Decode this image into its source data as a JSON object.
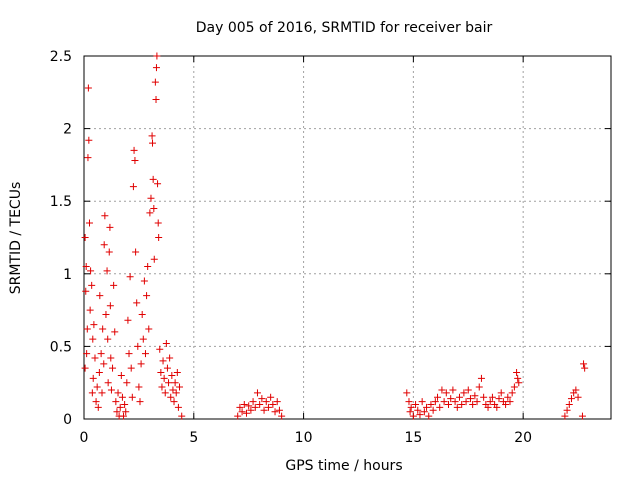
{
  "chart_data": {
    "type": "scatter",
    "title": "Day 005 of 2016, SRMTID for receiver bair",
    "xlabel": "GPS time / hours",
    "ylabel": "SRMTID / TECUs",
    "xlim": [
      0,
      24
    ],
    "ylim": [
      0,
      2.5
    ],
    "xticks": [
      "0",
      "5",
      "10",
      "15",
      "20"
    ],
    "yticks": [
      "0",
      "0.5",
      "1",
      "1.5",
      "2",
      "2.5"
    ],
    "grid": true,
    "legend": "none",
    "marker": "plus",
    "color": "#e00000",
    "series": [
      {
        "points": [
          [
            0.05,
            1.25
          ],
          [
            0.1,
            1.05
          ],
          [
            0.08,
            0.88
          ],
          [
            0.15,
            0.62
          ],
          [
            0.2,
            2.28
          ],
          [
            0.22,
            1.92
          ],
          [
            0.18,
            1.8
          ],
          [
            0.25,
            1.35
          ],
          [
            0.3,
            1.02
          ],
          [
            0.12,
            0.45
          ],
          [
            0.05,
            0.35
          ],
          [
            0.28,
            0.75
          ],
          [
            0.35,
            0.92
          ],
          [
            0.4,
            0.55
          ],
          [
            0.45,
            0.65
          ],
          [
            0.5,
            0.42
          ],
          [
            0.38,
            0.18
          ],
          [
            0.42,
            0.28
          ],
          [
            0.55,
            0.12
          ],
          [
            0.6,
            0.22
          ],
          [
            0.65,
            0.08
          ],
          [
            0.7,
            0.32
          ],
          [
            0.72,
            0.85
          ],
          [
            0.78,
            0.45
          ],
          [
            0.82,
            0.18
          ],
          [
            0.85,
            0.62
          ],
          [
            0.9,
            0.38
          ],
          [
            0.92,
            1.2
          ],
          [
            0.95,
            1.4
          ],
          [
            1.0,
            0.72
          ],
          [
            1.05,
            1.02
          ],
          [
            1.08,
            0.55
          ],
          [
            1.1,
            0.25
          ],
          [
            1.15,
            1.15
          ],
          [
            1.18,
            1.32
          ],
          [
            1.2,
            0.78
          ],
          [
            1.22,
            0.42
          ],
          [
            1.25,
            0.2
          ],
          [
            1.3,
            0.35
          ],
          [
            1.35,
            0.92
          ],
          [
            1.4,
            0.6
          ],
          [
            1.45,
            0.12
          ],
          [
            1.5,
            0.05
          ],
          [
            1.55,
            0.18
          ],
          [
            1.6,
            0.02
          ],
          [
            1.65,
            0.08
          ],
          [
            1.7,
            0.3
          ],
          [
            1.75,
            0.15
          ],
          [
            1.8,
            0.02
          ],
          [
            1.85,
            0.1
          ],
          [
            1.9,
            0.05
          ],
          [
            1.95,
            0.25
          ],
          [
            2.0,
            0.68
          ],
          [
            2.05,
            0.45
          ],
          [
            2.1,
            0.98
          ],
          [
            2.15,
            0.35
          ],
          [
            2.2,
            0.15
          ],
          [
            2.25,
            1.6
          ],
          [
            2.28,
            1.85
          ],
          [
            2.32,
            1.78
          ],
          [
            2.35,
            1.15
          ],
          [
            2.4,
            0.8
          ],
          [
            2.45,
            0.5
          ],
          [
            2.5,
            0.22
          ],
          [
            2.55,
            0.12
          ],
          [
            2.6,
            0.38
          ],
          [
            2.65,
            0.72
          ],
          [
            2.7,
            0.55
          ],
          [
            2.75,
            0.95
          ],
          [
            2.8,
            0.45
          ],
          [
            2.85,
            0.85
          ],
          [
            2.9,
            1.05
          ],
          [
            2.95,
            0.62
          ],
          [
            3.0,
            1.42
          ],
          [
            3.05,
            1.52
          ],
          [
            3.1,
            1.95
          ],
          [
            3.12,
            1.9
          ],
          [
            3.15,
            1.65
          ],
          [
            3.18,
            1.45
          ],
          [
            3.2,
            1.1
          ],
          [
            3.25,
            2.32
          ],
          [
            3.28,
            2.2
          ],
          [
            3.3,
            2.42
          ],
          [
            3.32,
            2.5
          ],
          [
            3.35,
            1.62
          ],
          [
            3.38,
            1.35
          ],
          [
            3.4,
            1.25
          ],
          [
            3.45,
            0.48
          ],
          [
            3.5,
            0.32
          ],
          [
            3.55,
            0.22
          ],
          [
            3.6,
            0.4
          ],
          [
            3.65,
            0.28
          ],
          [
            3.7,
            0.18
          ],
          [
            3.75,
            0.52
          ],
          [
            3.8,
            0.35
          ],
          [
            3.85,
            0.25
          ],
          [
            3.9,
            0.42
          ],
          [
            3.95,
            0.15
          ],
          [
            4.0,
            0.3
          ],
          [
            4.05,
            0.2
          ],
          [
            4.1,
            0.12
          ],
          [
            4.15,
            0.25
          ],
          [
            4.2,
            0.18
          ],
          [
            4.25,
            0.32
          ],
          [
            4.3,
            0.08
          ],
          [
            4.35,
            0.22
          ],
          [
            4.45,
            0.02
          ],
          [
            7.0,
            0.02
          ],
          [
            7.1,
            0.08
          ],
          [
            7.2,
            0.05
          ],
          [
            7.3,
            0.1
          ],
          [
            7.4,
            0.04
          ],
          [
            7.5,
            0.09
          ],
          [
            7.6,
            0.06
          ],
          [
            7.7,
            0.12
          ],
          [
            7.8,
            0.08
          ],
          [
            7.9,
            0.18
          ],
          [
            8.0,
            0.1
          ],
          [
            8.1,
            0.14
          ],
          [
            8.2,
            0.06
          ],
          [
            8.3,
            0.12
          ],
          [
            8.4,
            0.08
          ],
          [
            8.5,
            0.15
          ],
          [
            8.6,
            0.1
          ],
          [
            8.7,
            0.05
          ],
          [
            8.8,
            0.12
          ],
          [
            8.9,
            0.06
          ],
          [
            9.0,
            0.02
          ],
          [
            14.7,
            0.18
          ],
          [
            14.8,
            0.12
          ],
          [
            14.85,
            0.05
          ],
          [
            14.9,
            0.08
          ],
          [
            15.0,
            0.02
          ],
          [
            15.1,
            0.1
          ],
          [
            15.2,
            0.06
          ],
          [
            15.3,
            0.03
          ],
          [
            15.4,
            0.12
          ],
          [
            15.5,
            0.05
          ],
          [
            15.6,
            0.08
          ],
          [
            15.7,
            0.02
          ],
          [
            15.8,
            0.1
          ],
          [
            15.9,
            0.06
          ],
          [
            16.0,
            0.12
          ],
          [
            16.1,
            0.15
          ],
          [
            16.2,
            0.08
          ],
          [
            16.3,
            0.2
          ],
          [
            16.4,
            0.12
          ],
          [
            16.5,
            0.18
          ],
          [
            16.6,
            0.1
          ],
          [
            16.7,
            0.14
          ],
          [
            16.8,
            0.2
          ],
          [
            16.9,
            0.12
          ],
          [
            17.0,
            0.08
          ],
          [
            17.1,
            0.15
          ],
          [
            17.2,
            0.1
          ],
          [
            17.3,
            0.18
          ],
          [
            17.4,
            0.12
          ],
          [
            17.5,
            0.2
          ],
          [
            17.6,
            0.14
          ],
          [
            17.7,
            0.1
          ],
          [
            17.8,
            0.16
          ],
          [
            17.9,
            0.12
          ],
          [
            18.0,
            0.22
          ],
          [
            18.1,
            0.28
          ],
          [
            18.2,
            0.15
          ],
          [
            18.3,
            0.1
          ],
          [
            18.4,
            0.08
          ],
          [
            18.5,
            0.12
          ],
          [
            18.6,
            0.15
          ],
          [
            18.7,
            0.1
          ],
          [
            18.8,
            0.08
          ],
          [
            18.9,
            0.14
          ],
          [
            19.0,
            0.18
          ],
          [
            19.1,
            0.12
          ],
          [
            19.2,
            0.1
          ],
          [
            19.3,
            0.15
          ],
          [
            19.4,
            0.12
          ],
          [
            19.5,
            0.18
          ],
          [
            19.6,
            0.22
          ],
          [
            19.7,
            0.32
          ],
          [
            19.75,
            0.28
          ],
          [
            19.8,
            0.25
          ],
          [
            21.9,
            0.02
          ],
          [
            22.0,
            0.06
          ],
          [
            22.1,
            0.1
          ],
          [
            22.2,
            0.14
          ],
          [
            22.3,
            0.18
          ],
          [
            22.4,
            0.2
          ],
          [
            22.5,
            0.15
          ],
          [
            22.7,
            0.02
          ],
          [
            22.75,
            0.38
          ],
          [
            22.8,
            0.35
          ]
        ]
      }
    ]
  }
}
